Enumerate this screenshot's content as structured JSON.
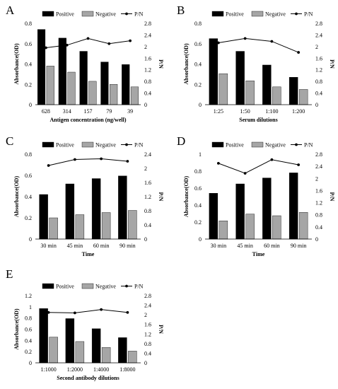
{
  "chart_data": [
    {
      "panel": "A",
      "type": "bar",
      "categories": [
        "628",
        "314",
        "157",
        "79",
        "39"
      ],
      "series": [
        {
          "name": "Positive",
          "values": [
            0.74,
            0.655,
            0.525,
            0.42,
            0.395
          ],
          "color": "#000000"
        },
        {
          "name": "Negative",
          "values": [
            0.38,
            0.32,
            0.23,
            0.2,
            0.175
          ],
          "color": "#a6a6a6"
        }
      ],
      "ratio": {
        "name": "P/N",
        "values": [
          1.96,
          2.05,
          2.28,
          2.1,
          2.2
        ]
      },
      "xlabel": "Antigen concentration (ng/well)",
      "ylabel": "Absorbance(OD)",
      "y2label": "P/N",
      "ylim": [
        0,
        0.8
      ],
      "yticks": [
        "0",
        "0.2",
        "0.4",
        "0.6",
        "0.8"
      ],
      "y2lim": [
        0,
        2.8
      ],
      "y2ticks": [
        "0",
        "0.4",
        "0.8",
        "1.2",
        "1.6",
        "2",
        "2.4",
        "2.8"
      ],
      "legend": "top-right",
      "grid": false
    },
    {
      "panel": "B",
      "type": "bar",
      "categories": [
        "1:25",
        "1:50",
        "1:100",
        "1:200"
      ],
      "series": [
        {
          "name": "Positive",
          "values": [
            0.65,
            0.525,
            0.39,
            0.27
          ],
          "color": "#000000"
        },
        {
          "name": "Negative",
          "values": [
            0.305,
            0.235,
            0.175,
            0.15
          ],
          "color": "#a6a6a6"
        }
      ],
      "ratio": {
        "name": "P/N",
        "values": [
          2.13,
          2.28,
          2.18,
          1.8
        ]
      },
      "xlabel": "Serum dilutions",
      "ylabel": "Absorbance(OD)",
      "y2label": "P/N",
      "ylim": [
        0,
        0.8
      ],
      "yticks": [
        "0",
        "0.2",
        "0.4",
        "0.6",
        "0.8"
      ],
      "y2lim": [
        0,
        2.8
      ],
      "y2ticks": [
        "0",
        "0.4",
        "0.8",
        "1.2",
        "1.6",
        "2",
        "2.4",
        "2.8"
      ],
      "legend": "top-right",
      "grid": false
    },
    {
      "panel": "C",
      "type": "bar",
      "categories": [
        "30 min",
        "45 min",
        "60 min",
        "90 min"
      ],
      "series": [
        {
          "name": "Positive",
          "values": [
            0.42,
            0.52,
            0.57,
            0.595
          ],
          "color": "#000000"
        },
        {
          "name": "Negative",
          "values": [
            0.2,
            0.23,
            0.25,
            0.27
          ],
          "color": "#a6a6a6"
        }
      ],
      "ratio": {
        "name": "P/N",
        "values": [
          2.08,
          2.25,
          2.27,
          2.2
        ]
      },
      "xlabel": "Time",
      "ylabel": "Absorbance(OD)",
      "y2label": "P/N",
      "ylim": [
        0,
        0.8
      ],
      "yticks": [
        "0",
        "0.2",
        "0.4",
        "0.6",
        "0.8"
      ],
      "y2lim": [
        0,
        2.4
      ],
      "y2ticks": [
        "0",
        "0.4",
        "0.8",
        "1.2",
        "1.6",
        "2",
        "2.4"
      ],
      "legend": "top-right",
      "grid": false
    },
    {
      "panel": "D",
      "type": "bar",
      "categories": [
        "30 min",
        "45 min",
        "60 min",
        "90 min"
      ],
      "series": [
        {
          "name": "Positive",
          "values": [
            0.54,
            0.65,
            0.72,
            0.78
          ],
          "color": "#000000"
        },
        {
          "name": "Negative",
          "values": [
            0.215,
            0.295,
            0.275,
            0.315
          ],
          "color": "#a6a6a6"
        }
      ],
      "ratio": {
        "name": "P/N",
        "values": [
          2.5,
          2.17,
          2.62,
          2.45
        ]
      },
      "xlabel": "Time",
      "ylabel": "Absorbance(OD)",
      "y2label": "P/N",
      "ylim": [
        0,
        1
      ],
      "yticks": [
        "0",
        "0.2",
        "0.4",
        "0.6",
        "0.8",
        "1"
      ],
      "y2lim": [
        0,
        2.8
      ],
      "y2ticks": [
        "0",
        "0.4",
        "0.8",
        "1.2",
        "1.6",
        "2",
        "2.4",
        "2.8"
      ],
      "legend": "top-right",
      "grid": false
    },
    {
      "panel": "E",
      "type": "bar",
      "categories": [
        "1:1000",
        "1:2000",
        "1:4000",
        "1:8000"
      ],
      "series": [
        {
          "name": "Positive",
          "values": [
            0.97,
            0.79,
            0.61,
            0.45
          ],
          "color": "#000000"
        },
        {
          "name": "Negative",
          "values": [
            0.46,
            0.38,
            0.275,
            0.21
          ],
          "color": "#a6a6a6"
        }
      ],
      "ratio": {
        "name": "P/N",
        "values": [
          2.1,
          2.08,
          2.22,
          2.1
        ]
      },
      "xlabel": "Second antibody dilutions",
      "ylabel": "Absorbance(OD)",
      "y2label": "P/N",
      "ylim": [
        0,
        1.2
      ],
      "yticks": [
        "0",
        "0.2",
        "0.4",
        "0.6",
        "0.8",
        "1",
        "1.2"
      ],
      "y2lim": [
        0,
        2.8
      ],
      "y2ticks": [
        "0",
        "0.4",
        "0.8",
        "1.2",
        "1.6",
        "2",
        "2.4",
        "2.8"
      ],
      "legend": "top-right",
      "grid": false
    }
  ]
}
